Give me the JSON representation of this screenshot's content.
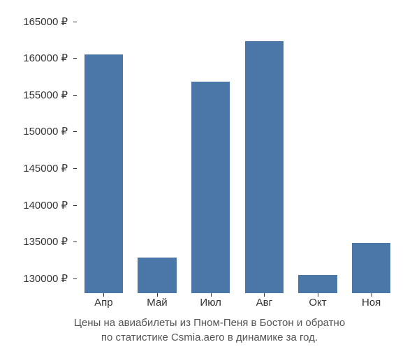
{
  "chart": {
    "type": "bar",
    "categories": [
      "Апр",
      "Май",
      "Июл",
      "Авг",
      "Окт",
      "Ноя"
    ],
    "values": [
      160500,
      132800,
      156800,
      162300,
      130500,
      134800
    ],
    "bar_color": "#4a76a8",
    "background_color": "#ffffff",
    "y_baseline": 128000,
    "y_max": 166000,
    "yticks": [
      130000,
      135000,
      140000,
      145000,
      150000,
      155000,
      160000,
      165000
    ],
    "ytick_labels": [
      "130000 ₽",
      "135000 ₽",
      "140000 ₽",
      "145000 ₽",
      "150000 ₽",
      "155000 ₽",
      "160000 ₽",
      "165000 ₽"
    ],
    "bar_width_ratio": 0.72,
    "tick_fontsize": 15,
    "tick_color": "#333333",
    "caption_fontsize": 15,
    "caption_color": "#555555"
  },
  "caption": {
    "line1": "Цены на авиабилеты из Пном-Пеня в Бостон и обратно",
    "line2": "по статистике Csmia.aero в динамике за год."
  }
}
